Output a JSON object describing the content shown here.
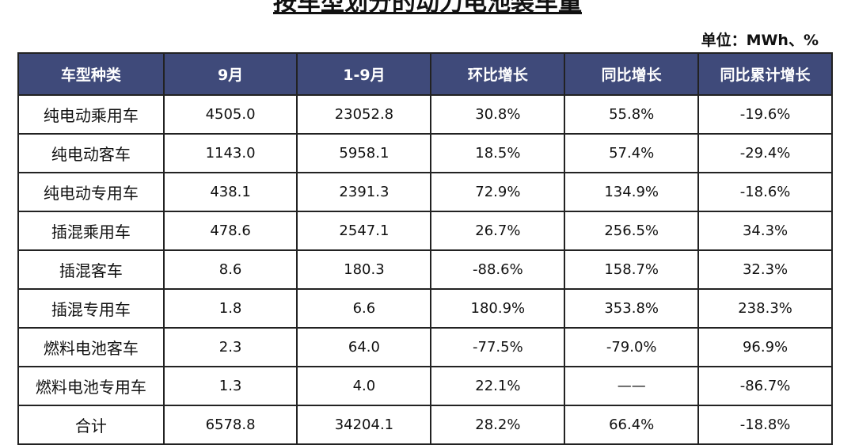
{
  "title": "按车型划分的动力电池装车量",
  "unit": "单位：MWh、%",
  "headers": [
    "车型种类",
    "9月",
    "1-9月",
    "环比增长",
    "同比增长",
    "同比累计增长"
  ],
  "rows": [
    [
      "纯电动乘用车",
      "4505.0",
      "23052.8",
      "30.8%",
      "55.8%",
      "-19.6%"
    ],
    [
      "纯电动客车",
      "1143.0",
      "5958.1",
      "18.5%",
      "57.4%",
      "-29.4%"
    ],
    [
      "纯电动专用车",
      "438.1",
      "2391.3",
      "72.9%",
      "134.9%",
      "-18.6%"
    ],
    [
      "插混乘用车",
      "478.6",
      "2547.1",
      "26.7%",
      "256.5%",
      "34.3%"
    ],
    [
      "插混客车",
      "8.6",
      "180.3",
      "-88.6%",
      "158.7%",
      "32.3%"
    ],
    [
      "插混专用车",
      "1.8",
      "6.6",
      "180.9%",
      "353.8%",
      "238.3%"
    ],
    [
      "燃料电池客车",
      "2.3",
      "64.0",
      "-77.5%",
      "-79.0%",
      "96.9%"
    ],
    [
      "燃料电池专用车",
      "1.3",
      "4.0",
      "22.1%",
      "——",
      "-86.7%"
    ],
    [
      "合计",
      "6578.8",
      "34204.1",
      "28.2%",
      "66.4%",
      "-18.8%"
    ]
  ]
}
